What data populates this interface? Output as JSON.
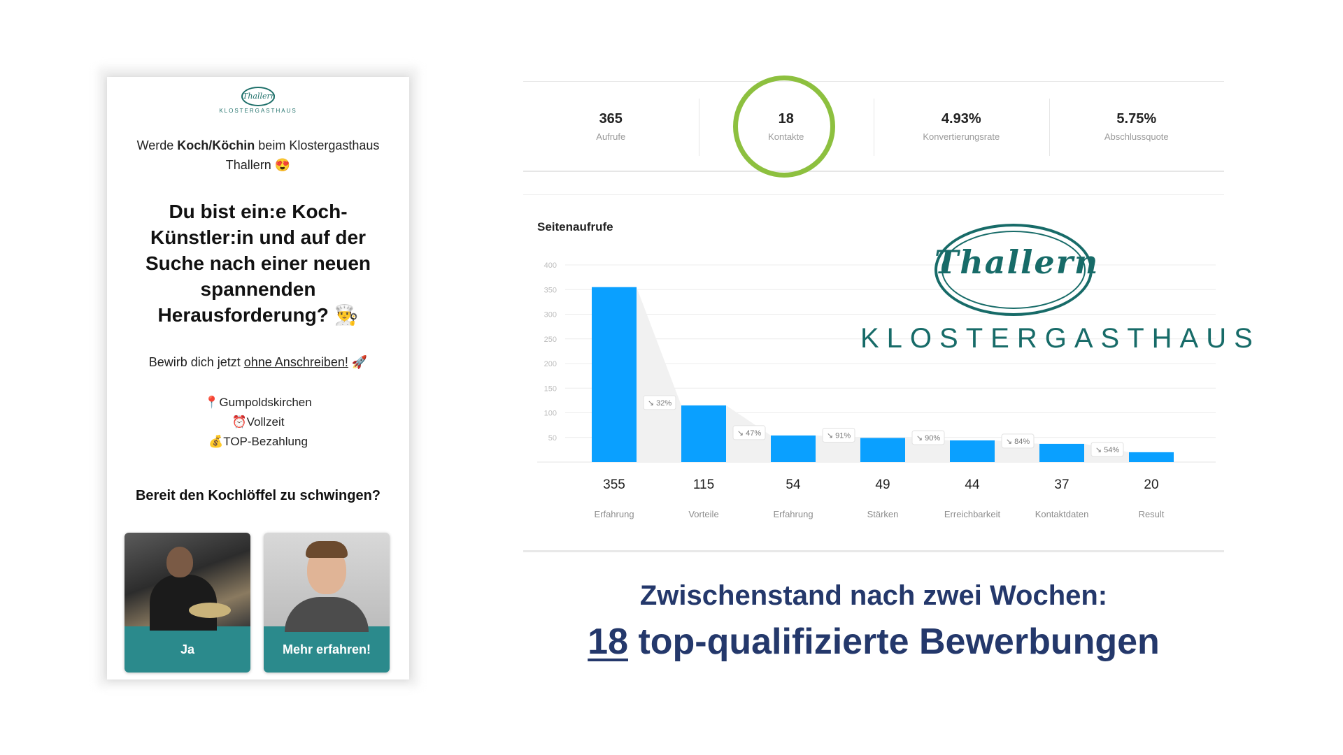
{
  "phone": {
    "logo_text": "Thallern",
    "logo_word": "KLOSTERGASTHAUS",
    "intro_prefix": "Werde ",
    "intro_bold": "Koch/Köchin",
    "intro_suffix": " beim Klostergasthaus Thallern 😍",
    "headline": "Du bist ein:e Koch-Künstler:in und auf der Suche nach einer neuen spannenden Herausforderung? 👨‍🍳",
    "cta_prefix": "Bewirb dich jetzt ",
    "cta_link": "ohne Anschreiben!",
    "cta_suffix": " 🚀",
    "facts": [
      "📍Gumpoldskirchen",
      "⏰Vollzeit",
      "💰TOP-Bezahlung"
    ],
    "question": "Bereit den Kochlöffel zu schwingen?",
    "choice_yes": "Ja",
    "choice_more": "Mehr erfahren!"
  },
  "stats": [
    {
      "value": "365",
      "label": "Aufrufe"
    },
    {
      "value": "18",
      "label": "Kontakte"
    },
    {
      "value": "4.93%",
      "label": "Konvertierungsrate"
    },
    {
      "value": "5.75%",
      "label": "Abschlussquote"
    }
  ],
  "highlight_color": "#8dc03f",
  "brand": {
    "script": "Thallern",
    "word": "KLOSTERGASTHAUS",
    "color": "#176b68"
  },
  "caption": {
    "line1": "Zwischenstand nach zwei Wochen:",
    "number": "18",
    "line2_rest": " top-qualifizierte Bewerbungen",
    "color": "#24386b"
  },
  "chart_data": {
    "type": "bar",
    "title": "Seitenaufrufe",
    "categories": [
      "Erfahrung",
      "Vorteile",
      "Erfahrung",
      "Stärken",
      "Erreichbarkeit",
      "Kontaktdaten",
      "Result"
    ],
    "values": [
      355,
      115,
      54,
      49,
      44,
      37,
      20
    ],
    "step_rates": [
      "32%",
      "47%",
      "91%",
      "90%",
      "84%",
      "54%"
    ],
    "yticks": [
      50,
      100,
      150,
      200,
      250,
      300,
      350,
      400
    ],
    "ylim": [
      0,
      400
    ],
    "grid": true,
    "bar_color": "#0aa0ff"
  }
}
